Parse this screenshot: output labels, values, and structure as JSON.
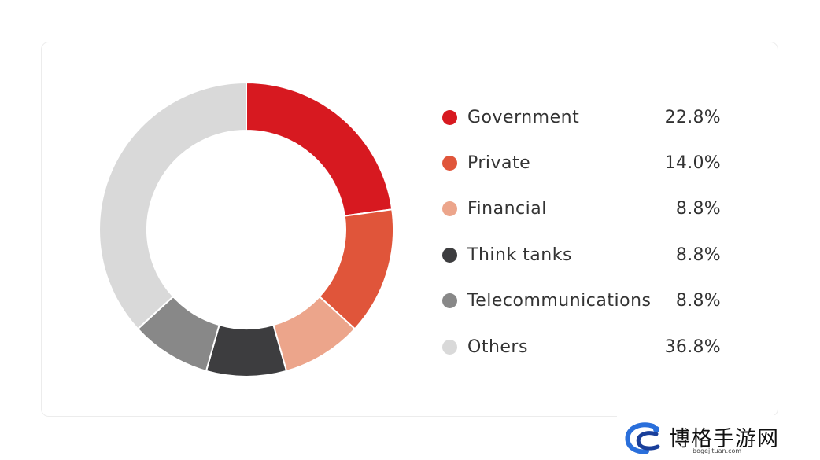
{
  "chart_data": {
    "type": "pie",
    "variant": "donut",
    "categories": [
      "Government",
      "Private",
      "Financial",
      "Think tanks",
      "Telecommunications",
      "Others"
    ],
    "values": [
      22.8,
      14.0,
      8.8,
      8.8,
      8.8,
      36.8
    ],
    "value_labels": [
      "22.8%",
      "14.0%",
      "8.8%",
      "8.8%",
      "8.8%",
      "36.8%"
    ],
    "colors": [
      "#d71920",
      "#e0553a",
      "#eca58b",
      "#3d3d3f",
      "#888888",
      "#d9d9d9"
    ],
    "title": "",
    "legend_position": "right"
  },
  "watermark": {
    "text": "博格手游网",
    "url": "bogejituan.com"
  }
}
